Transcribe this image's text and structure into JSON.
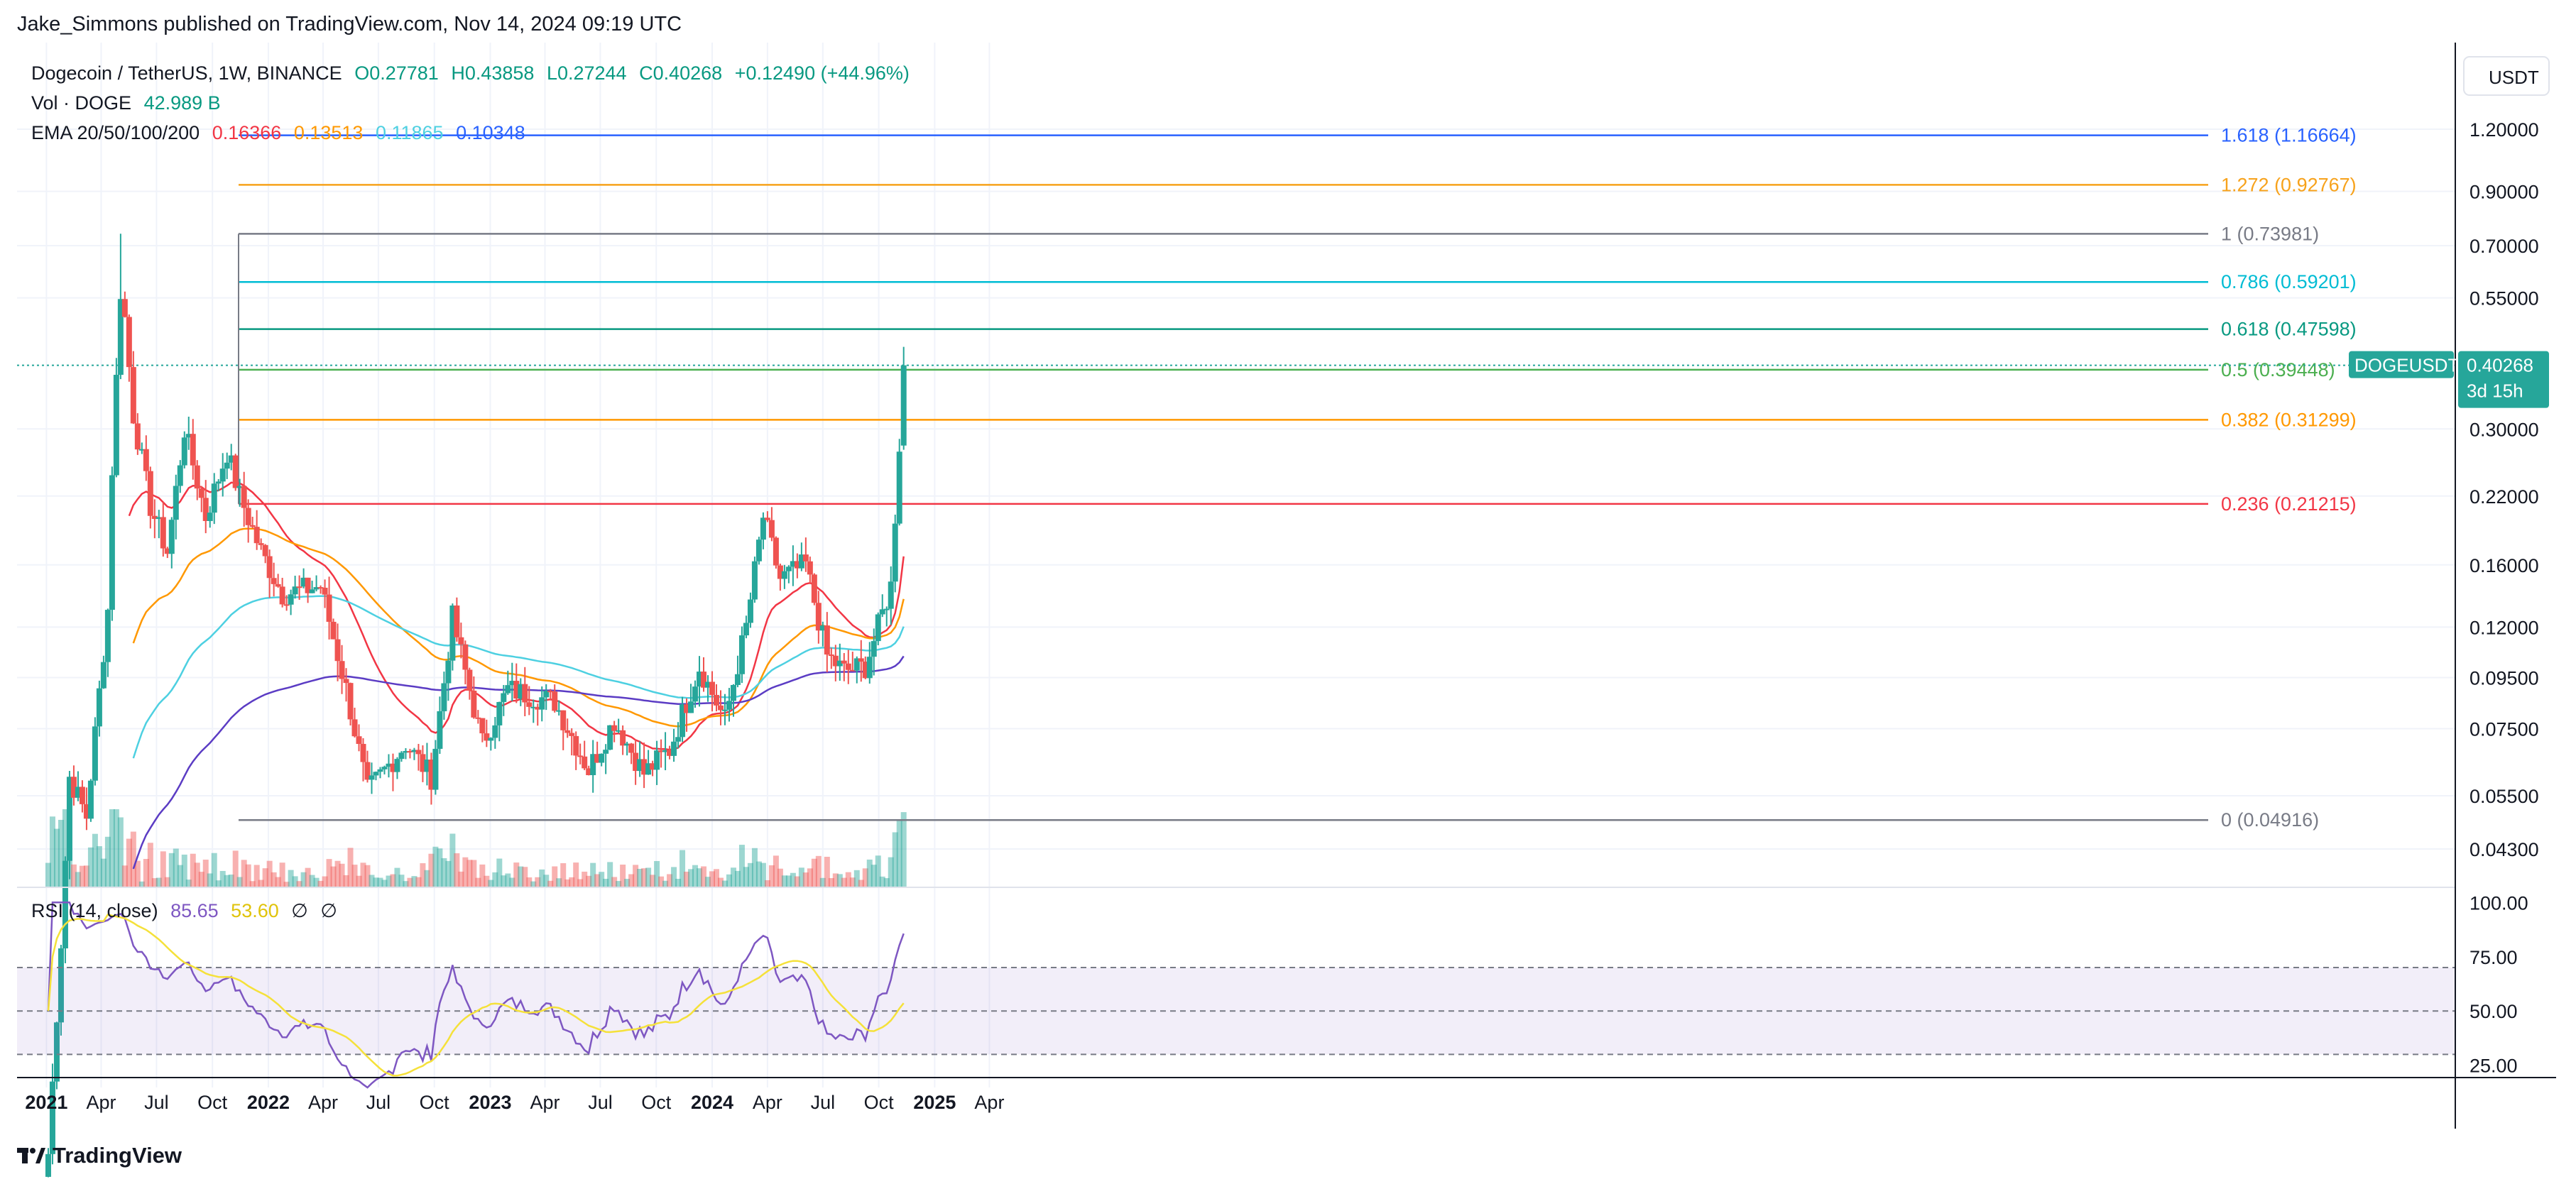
{
  "header": {
    "published": "Jake_Simmons published on TradingView.com, Nov 14, 2024 09:19 UTC",
    "symbol_line": "Dogecoin / TetherUS, 1W, BINANCE",
    "ohlc": {
      "open": "O0.27781",
      "high": "H0.43858",
      "low": "L0.27244",
      "close": "C0.40268",
      "change": "+0.12490 (+44.96%)"
    },
    "vol_label": "Vol · DOGE",
    "vol_value": "42.989 B",
    "ema_label": "EMA 20/50/100/200",
    "ema_values": [
      "0.16366",
      "0.13513",
      "0.11865",
      "0.10348"
    ],
    "rsi_label": "RSI (14, close)",
    "rsi_values": [
      "85.65",
      "53.60",
      "∅",
      "∅"
    ]
  },
  "price_axis": {
    "currency": "USDT",
    "ticks": [
      "1.20000",
      "0.90000",
      "0.70000",
      "0.55000",
      "0.40268",
      "0.30000",
      "0.22000",
      "0.16000",
      "0.12000",
      "0.09500",
      "0.07500",
      "0.05500",
      "0.04300"
    ],
    "last_symbol": "DOGEUSDT",
    "last_price": "0.40268",
    "countdown": "3d 15h"
  },
  "rsi_axis": {
    "ticks": [
      "100.00",
      "75.00",
      "50.00",
      "25.00"
    ]
  },
  "time_axis": {
    "ticks": [
      "2021",
      "Apr",
      "Jul",
      "Oct",
      "2022",
      "Apr",
      "Jul",
      "Oct",
      "2023",
      "Apr",
      "Jul",
      "Oct",
      "2024",
      "Apr",
      "Jul",
      "Oct",
      "2025",
      "Apr"
    ]
  },
  "footer": {
    "brand": "TradingView"
  },
  "colors": {
    "up": "#26a69a",
    "down": "#ef5350",
    "ema20": "#f23645",
    "ema50": "#ff9800",
    "ema100": "#4dd0e1",
    "ema200": "#5b3cc4",
    "rsi": "#7e57c2",
    "rsi_ma": "#f5e13a",
    "fib_1618": "#2962ff",
    "fib_1272": "#f7a21b",
    "fib_1": "#787b86",
    "fib_0786": "#00bcd4",
    "fib_0618": "#089981",
    "fib_05": "#4caf50",
    "fib_0382": "#ff9800",
    "fib_0236": "#f23645",
    "fib_0": "#787b86"
  },
  "chart_data": {
    "type": "candlestick",
    "symbol": "Dogecoin / TetherUS",
    "interval": "1W",
    "exchange": "BINANCE",
    "scale": "log",
    "last": {
      "open": 0.27781,
      "high": 0.43858,
      "low": 0.27244,
      "close": 0.40268,
      "change": 0.1249,
      "change_pct": 44.96
    },
    "fib_levels": [
      {
        "ratio": "1.618",
        "price": 1.16664,
        "label": "1.618 (1.16664)"
      },
      {
        "ratio": "1.272",
        "price": 0.92767,
        "label": "1.272 (0.92767)"
      },
      {
        "ratio": "1",
        "price": 0.73981,
        "label": "1 (0.73981)"
      },
      {
        "ratio": "0.786",
        "price": 0.59201,
        "label": "0.786 (0.59201)"
      },
      {
        "ratio": "0.618",
        "price": 0.47598,
        "label": "0.618 (0.47598)"
      },
      {
        "ratio": "0.5",
        "price": 0.39448,
        "label": "0.5 (0.39448)"
      },
      {
        "ratio": "0.382",
        "price": 0.31299,
        "label": "0.382 (0.31299)"
      },
      {
        "ratio": "0.236",
        "price": 0.21215,
        "label": "0.236 (0.21215)"
      },
      {
        "ratio": "0",
        "price": 0.04916,
        "label": "0 (0.04916)"
      }
    ],
    "ema": {
      "ema20": 0.16366,
      "ema50": 0.13513,
      "ema100": 0.11865,
      "ema200": 0.10348
    },
    "rsi": {
      "value": 85.65,
      "ma": 53.6,
      "upper_band": 70,
      "middle": 50,
      "lower_band": 30
    },
    "price_anchors": [
      [
        "2021-01-04",
        0.0105
      ],
      [
        "2021-01-25",
        0.028
      ],
      [
        "2021-02-08",
        0.06
      ],
      [
        "2021-03-08",
        0.05
      ],
      [
        "2021-04-12",
        0.13
      ],
      [
        "2021-04-19",
        0.25
      ],
      [
        "2021-05-03",
        0.57
      ],
      [
        "2021-05-10",
        0.5
      ],
      [
        "2021-05-24",
        0.32
      ],
      [
        "2021-06-21",
        0.21
      ],
      [
        "2021-07-19",
        0.17
      ],
      [
        "2021-08-16",
        0.3
      ],
      [
        "2021-09-20",
        0.2
      ],
      [
        "2021-10-25",
        0.27
      ],
      [
        "2021-11-15",
        0.22
      ],
      [
        "2021-12-20",
        0.17
      ],
      [
        "2022-01-24",
        0.14
      ],
      [
        "2022-03-28",
        0.145
      ],
      [
        "2022-05-09",
        0.09
      ],
      [
        "2022-06-13",
        0.056
      ],
      [
        "2022-08-15",
        0.07
      ],
      [
        "2022-09-26",
        0.06
      ],
      [
        "2022-10-31",
        0.125
      ],
      [
        "2022-12-19",
        0.07
      ],
      [
        "2023-01-30",
        0.09
      ],
      [
        "2023-04-17",
        0.085
      ],
      [
        "2023-06-12",
        0.062
      ],
      [
        "2023-07-24",
        0.078
      ],
      [
        "2023-09-11",
        0.061
      ],
      [
        "2023-10-23",
        0.068
      ],
      [
        "2023-12-11",
        0.1
      ],
      [
        "2024-01-22",
        0.078
      ],
      [
        "2024-02-26",
        0.12
      ],
      [
        "2024-03-25",
        0.2
      ],
      [
        "2024-04-22",
        0.15
      ],
      [
        "2024-06-03",
        0.16
      ],
      [
        "2024-07-08",
        0.105
      ],
      [
        "2024-08-05",
        0.098
      ],
      [
        "2024-09-09",
        0.1
      ],
      [
        "2024-09-30",
        0.12
      ],
      [
        "2024-10-21",
        0.145
      ],
      [
        "2024-11-04",
        0.28
      ],
      [
        "2024-11-11",
        0.40268
      ]
    ]
  }
}
